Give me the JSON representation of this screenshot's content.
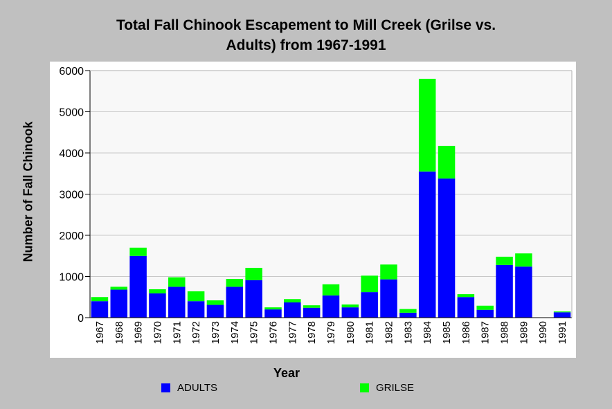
{
  "chart_data": {
    "type": "bar",
    "stacked": true,
    "title_line1": "Total Fall Chinook Escapement to Mill Creek (Grilse vs.",
    "title_line2": "Adults) from 1967-1991",
    "xlabel": "Year",
    "ylabel": "Number of Fall Chinook",
    "ylim": [
      0,
      6000
    ],
    "yticks": [
      0,
      1000,
      2000,
      3000,
      4000,
      5000,
      6000
    ],
    "grid": true,
    "legend_position": "bottom",
    "categories": [
      "1967",
      "1968",
      "1969",
      "1970",
      "1971",
      "1972",
      "1973",
      "1974",
      "1975",
      "1976",
      "1977",
      "1978",
      "1979",
      "1980",
      "1981",
      "1982",
      "1983",
      "1984",
      "1985",
      "1986",
      "1987",
      "1988",
      "1989",
      "1990",
      "1991"
    ],
    "series": [
      {
        "name": "ADULTS",
        "color": "#0000ff",
        "values": [
          400,
          680,
          1500,
          590,
          750,
          400,
          310,
          750,
          910,
          200,
          370,
          240,
          540,
          250,
          620,
          930,
          120,
          3550,
          3380,
          500,
          190,
          1280,
          1240,
          0,
          130
        ]
      },
      {
        "name": "GRILSE",
        "color": "#00ff00",
        "values": [
          100,
          70,
          200,
          100,
          230,
          240,
          110,
          190,
          300,
          50,
          80,
          60,
          270,
          70,
          400,
          360,
          90,
          2250,
          790,
          70,
          100,
          200,
          320,
          0,
          20
        ]
      }
    ]
  }
}
